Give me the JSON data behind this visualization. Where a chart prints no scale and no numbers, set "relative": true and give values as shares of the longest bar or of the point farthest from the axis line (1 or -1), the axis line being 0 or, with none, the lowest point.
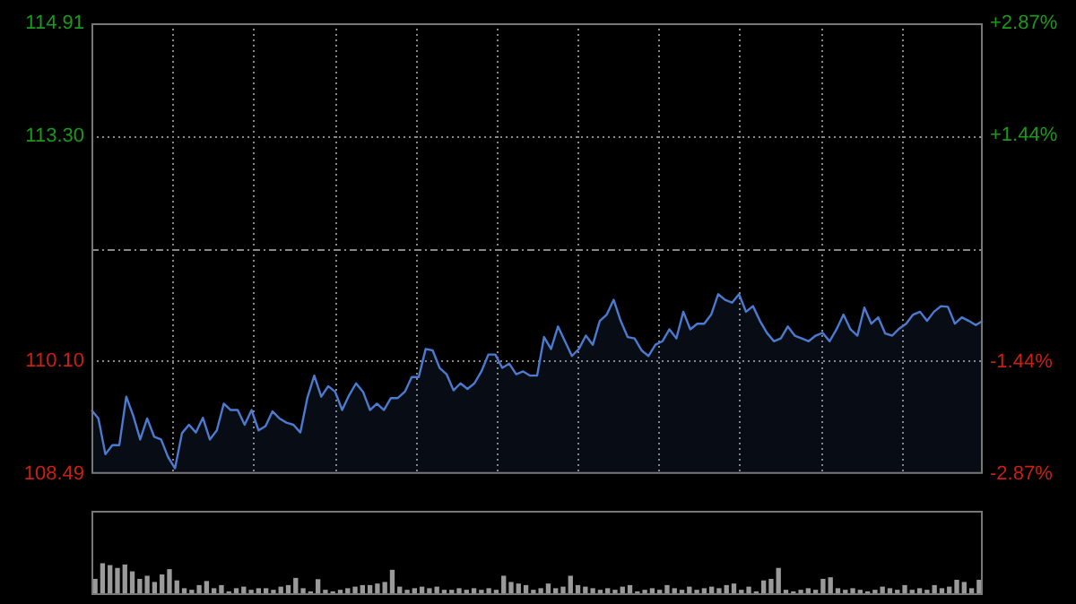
{
  "chart_data": [
    {
      "type": "area",
      "categories": [
        null,
        null,
        null,
        null,
        null,
        null,
        null,
        null,
        null,
        null,
        null,
        null,
        null,
        null,
        null,
        null,
        null,
        null,
        null,
        null,
        null,
        null,
        null,
        null,
        null,
        null,
        null,
        null,
        null,
        null,
        null,
        null,
        null,
        null,
        null,
        null,
        null,
        null,
        null,
        null,
        null,
        null,
        null,
        null,
        null,
        null,
        null,
        null,
        null,
        null,
        null,
        null,
        null,
        null,
        null,
        null,
        null,
        null,
        null,
        null,
        null,
        null,
        null,
        null,
        null,
        null,
        null,
        null,
        null,
        null,
        null,
        null,
        null,
        null,
        null,
        null,
        null,
        null,
        null,
        null,
        null,
        null,
        null,
        null,
        null,
        null,
        null,
        null,
        null,
        null,
        null,
        null,
        null,
        null,
        null,
        null,
        null,
        null,
        null,
        null,
        null,
        null,
        null,
        null,
        null,
        null,
        null,
        null,
        null,
        null,
        null,
        null,
        null,
        null,
        null,
        null,
        null,
        null,
        null,
        null,
        null,
        null,
        null,
        null,
        null,
        null,
        null,
        null,
        null
      ],
      "series": [
        {
          "color": "#4a7bd0",
          "values": [
            109.4,
            109.28,
            108.77,
            108.9,
            108.9,
            109.59,
            109.32,
            108.98,
            109.28,
            109.02,
            108.98,
            108.73,
            108.57,
            109.07,
            109.19,
            109.08,
            109.29,
            108.98,
            109.11,
            109.49,
            109.4,
            109.4,
            109.19,
            109.4,
            109.11,
            109.17,
            109.38,
            109.28,
            109.22,
            109.19,
            109.08,
            109.57,
            109.89,
            109.59,
            109.74,
            109.66,
            109.4,
            109.61,
            109.78,
            109.66,
            109.4,
            109.49,
            109.4,
            109.57,
            109.57,
            109.66,
            109.87,
            109.87,
            110.27,
            110.25,
            110.0,
            109.91,
            109.68,
            109.78,
            109.7,
            109.78,
            109.95,
            110.19,
            110.19,
            110.0,
            110.06,
            109.91,
            109.95,
            109.89,
            109.89,
            110.44,
            110.27,
            110.59,
            110.38,
            110.17,
            110.27,
            110.46,
            110.33,
            110.67,
            110.76,
            110.97,
            110.67,
            110.44,
            110.42,
            110.25,
            110.17,
            110.33,
            110.38,
            110.55,
            110.42,
            110.8,
            110.55,
            110.63,
            110.63,
            110.76,
            111.05,
            110.97,
            110.93,
            111.05,
            110.8,
            110.88,
            110.67,
            110.5,
            110.38,
            110.42,
            110.59,
            110.46,
            110.42,
            110.38,
            110.46,
            110.5,
            110.38,
            110.55,
            110.76,
            110.55,
            110.46,
            110.86,
            110.63,
            110.72,
            110.49,
            110.46,
            110.56,
            110.63,
            110.76,
            110.8,
            110.67,
            110.8,
            110.88,
            110.87,
            110.63,
            110.72,
            110.67,
            110.61,
            110.67
          ]
        }
      ],
      "ylim": [
        108.49,
        114.91
      ],
      "yticks": [
        108.49,
        {
          "value": 110.1,
          "label": "110.10"
        },
        {
          "value": 111.7,
          "label": null
        },
        {
          "value": 113.3,
          "label": "113.30"
        },
        114.91
      ],
      "y2lim": [
        -2.87,
        2.87
      ],
      "y2ticks": [
        {
          "value": -2.87,
          "label": "-2.87%"
        },
        {
          "value": -1.44,
          "label": "-1.44%"
        },
        {
          "value": 1.44,
          "label": "+1.44%"
        },
        {
          "value": 2.87,
          "label": "+2.87%"
        }
      ],
      "tick_labels": "y",
      "grid": true,
      "legend": false,
      "marker": "none"
    },
    {
      "type": "bar",
      "relative": true,
      "tick_labels": false,
      "legend": false,
      "categories": [
        null,
        null,
        null,
        null,
        null,
        null,
        null,
        null,
        null,
        null,
        null,
        null,
        null,
        null,
        null,
        null,
        null,
        null,
        null,
        null,
        null,
        null,
        null,
        null,
        null,
        null,
        null,
        null,
        null,
        null,
        null,
        null,
        null,
        null,
        null,
        null,
        null,
        null,
        null,
        null,
        null,
        null,
        null,
        null,
        null,
        null,
        null,
        null,
        null,
        null,
        null,
        null,
        null,
        null,
        null,
        null,
        null,
        null,
        null,
        null,
        null,
        null,
        null,
        null,
        null,
        null,
        null,
        null,
        null,
        null,
        null,
        null,
        null,
        null,
        null,
        null,
        null,
        null,
        null,
        null,
        null,
        null,
        null,
        null,
        null,
        null,
        null,
        null,
        null,
        null,
        null,
        null,
        null,
        null,
        null,
        null,
        null,
        null,
        null,
        null,
        null,
        null,
        null,
        null,
        null,
        null,
        null,
        null,
        null,
        null,
        null,
        null,
        null,
        null,
        null,
        null,
        null,
        null,
        null,
        null
      ],
      "color": "#9a9a9a",
      "values": [
        0.5,
        1,
        0.94,
        0.85,
        0.96,
        0.74,
        0.5,
        0.6,
        0.4,
        0.64,
        0.81,
        0.45,
        0.2,
        0.15,
        0.3,
        0.43,
        0.2,
        0.3,
        0.1,
        0.2,
        0.25,
        0.15,
        0.2,
        0.2,
        0.15,
        0.25,
        0.3,
        0.53,
        0.2,
        0.1,
        0.49,
        0.15,
        0.1,
        0.15,
        0.2,
        0.25,
        0.3,
        0.3,
        0.35,
        0.4,
        0.79,
        0.25,
        0.15,
        0.2,
        0.25,
        0.2,
        0.25,
        0.15,
        0.15,
        0.2,
        0.15,
        0.2,
        0.15,
        0.2,
        0.15,
        0.6,
        0.4,
        0.35,
        0.3,
        0.15,
        0.2,
        0.35,
        0.2,
        0.25,
        0.6,
        0.3,
        0.25,
        0.2,
        0.15,
        0.2,
        0.15,
        0.25,
        0.3,
        0.1,
        0.15,
        0.2,
        0.15,
        0.3,
        0.2,
        0.15,
        0.25,
        0.15,
        0.2,
        0.25,
        0.2,
        0.3,
        0.35,
        0.15,
        0.25,
        0.1,
        0.45,
        0.5,
        0.85,
        0.15,
        0.1,
        0.15,
        0.2,
        0.15,
        0.5,
        0.55,
        0.2,
        0.15,
        0.2,
        0.15,
        0.1,
        0.15,
        0.25,
        0.2,
        0.15,
        0.3,
        0.15,
        0.2,
        0.15,
        0.3,
        0.2,
        0.25,
        0.47,
        0.4,
        0.2,
        0.47
      ]
    }
  ]
}
